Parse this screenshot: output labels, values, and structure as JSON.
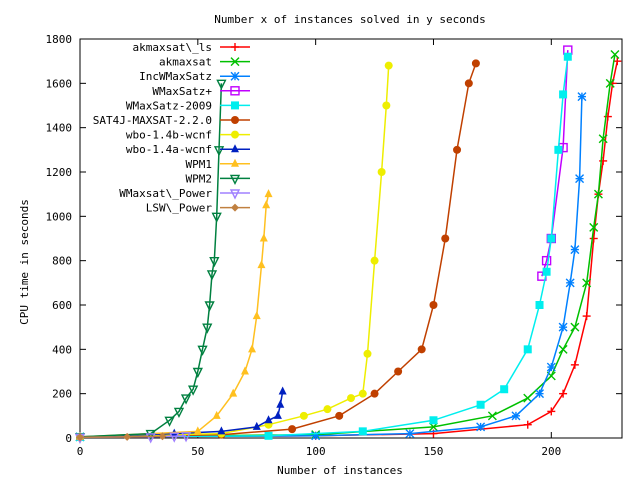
{
  "chart_data": {
    "type": "line",
    "title": "Number x of instances solved in y seconds",
    "xlabel": "Number of instances",
    "ylabel": "CPU time in seconds",
    "xlim": [
      0,
      230
    ],
    "ylim": [
      0,
      1800
    ],
    "xticks": [
      0,
      50,
      100,
      150,
      200
    ],
    "yticks": [
      0,
      200,
      400,
      600,
      800,
      1000,
      1200,
      1400,
      1600,
      1800
    ],
    "grid": false,
    "legend_placement": "top-left",
    "series": [
      {
        "name": "akmaxsat\\_ls",
        "color": "#ff0000",
        "marker": "plus",
        "x": [
          0,
          100,
          150,
          190,
          200,
          205,
          210,
          215,
          218,
          220,
          222,
          224,
          226,
          228
        ],
        "y": [
          5,
          10,
          20,
          60,
          120,
          200,
          330,
          550,
          900,
          1100,
          1250,
          1450,
          1600,
          1700
        ]
      },
      {
        "name": "akmaxsat",
        "color": "#00c000",
        "marker": "x",
        "x": [
          0,
          100,
          150,
          175,
          190,
          200,
          205,
          210,
          215,
          218,
          220,
          222,
          225,
          227
        ],
        "y": [
          5,
          15,
          50,
          100,
          180,
          280,
          400,
          500,
          700,
          950,
          1100,
          1350,
          1600,
          1730
        ]
      },
      {
        "name": "IncWMaxSatz",
        "color": "#0080ff",
        "marker": "star",
        "x": [
          0,
          100,
          140,
          170,
          185,
          195,
          200,
          205,
          208,
          210,
          212,
          213
        ],
        "y": [
          5,
          10,
          20,
          50,
          100,
          200,
          320,
          500,
          700,
          850,
          1170,
          1540
        ]
      },
      {
        "name": "WMaxSatz+",
        "color": "#c000ff",
        "marker": "square-open",
        "x": [
          196,
          198,
          200,
          205,
          207
        ],
        "y": [
          730,
          800,
          900,
          1310,
          1750
        ]
      },
      {
        "name": "WMaxSatz-2009",
        "color": "#00eeee",
        "marker": "square",
        "x": [
          0,
          80,
          120,
          150,
          170,
          180,
          190,
          195,
          198,
          200,
          203,
          205,
          207
        ],
        "y": [
          5,
          10,
          30,
          80,
          150,
          220,
          400,
          600,
          750,
          900,
          1300,
          1550,
          1720
        ]
      },
      {
        "name": "SAT4J-MAXSAT-2.2.0",
        "color": "#c04000",
        "marker": "circle",
        "x": [
          0,
          60,
          90,
          110,
          125,
          135,
          145,
          150,
          155,
          160,
          165,
          168
        ],
        "y": [
          5,
          15,
          40,
          100,
          200,
          300,
          400,
          600,
          900,
          1300,
          1600,
          1690
        ]
      },
      {
        "name": "wbo-1.4b-wcnf",
        "color": "#eeee00",
        "marker": "circle",
        "x": [
          0,
          60,
          80,
          95,
          105,
          115,
          120,
          122,
          125,
          128,
          130,
          131
        ],
        "y": [
          5,
          20,
          60,
          100,
          130,
          180,
          200,
          380,
          800,
          1200,
          1500,
          1680
        ]
      },
      {
        "name": "wbo-1.4a-wcnf",
        "color": "#0020c0",
        "marker": "triangle",
        "x": [
          0,
          40,
          60,
          75,
          80,
          84,
          85,
          86
        ],
        "y": [
          5,
          20,
          30,
          50,
          80,
          100,
          150,
          210
        ]
      },
      {
        "name": "WPM1",
        "color": "#ffc020",
        "marker": "triangle",
        "x": [
          0,
          50,
          58,
          65,
          70,
          73,
          75,
          77,
          78,
          79,
          80
        ],
        "y": [
          5,
          30,
          100,
          200,
          300,
          400,
          550,
          780,
          900,
          1050,
          1100
        ]
      },
      {
        "name": "WPM2",
        "color": "#008040",
        "marker": "triangle-down",
        "x": [
          0,
          30,
          38,
          42,
          45,
          48,
          50,
          52,
          54,
          55,
          56,
          57,
          58,
          59,
          60
        ],
        "y": [
          5,
          20,
          80,
          120,
          180,
          220,
          300,
          400,
          500,
          600,
          740,
          800,
          1000,
          1300,
          1600
        ]
      },
      {
        "name": "WMaxsat\\_Power",
        "color": "#a080ff",
        "marker": "triangle-down",
        "x": [
          0,
          30,
          40,
          45
        ],
        "y": [
          3,
          5,
          8,
          10
        ]
      },
      {
        "name": "LSW\\_Power",
        "color": "#c08040",
        "marker": "diamond",
        "x": [
          0,
          20,
          35
        ],
        "y": [
          3,
          5,
          8
        ]
      }
    ]
  }
}
